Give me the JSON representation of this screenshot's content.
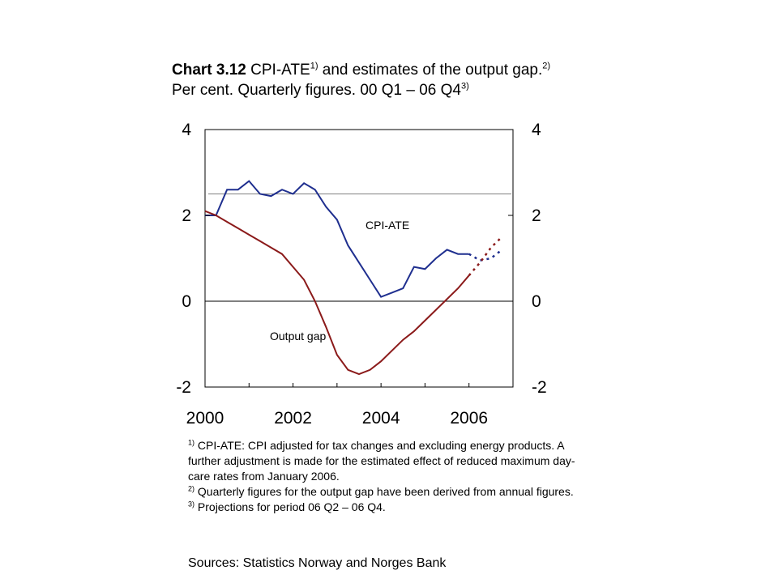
{
  "title": {
    "number": "Chart 3.12",
    "text1": " CPI-ATE",
    "sup1": "1)",
    "text2": " and estimates of the output gap.",
    "sup2": "2)",
    "text3": " Per cent. Quarterly figures. 00 Q1 – 06 Q4",
    "sup3": "3)"
  },
  "footnotes": [
    {
      "marker": "1)",
      "text": " CPI-ATE: CPI adjusted for tax changes and excluding energy products. A further adjustment is made for the estimated effect of reduced maximum day-care rates from January 2006."
    },
    {
      "marker": "2)",
      "text": " Quarterly figures for the output gap have been derived from annual figures."
    },
    {
      "marker": "3)",
      "text": " Projections for period 06 Q2 –  06 Q4."
    }
  ],
  "sources": "Sources: Statistics Norway and Norges Bank",
  "chart_data": {
    "type": "line",
    "xlim": [
      2000,
      2007
    ],
    "ylim": [
      -2,
      4
    ],
    "x_ticks": [
      2000,
      2002,
      2004,
      2006
    ],
    "x_tick_labels": [
      "2000",
      "2002",
      "2004",
      "2006"
    ],
    "y_ticks": [
      4,
      2,
      0,
      -2
    ],
    "y_tick_labels_left": [
      "4",
      "2",
      "0",
      "-2"
    ],
    "y_tick_labels_right": [
      "4",
      "2",
      "0",
      "-2"
    ],
    "grid": false,
    "reference_lines": [
      {
        "y": 2.5,
        "color": "#808080"
      },
      {
        "y": 0,
        "color": "#000000"
      }
    ],
    "x": [
      2000.0,
      2000.25,
      2000.5,
      2000.75,
      2001.0,
      2001.25,
      2001.5,
      2001.75,
      2002.0,
      2002.25,
      2002.5,
      2002.75,
      2003.0,
      2003.25,
      2003.5,
      2003.75,
      2004.0,
      2004.25,
      2004.5,
      2004.75,
      2005.0,
      2005.25,
      2005.5,
      2005.75,
      2006.0,
      2006.25,
      2006.5,
      2006.75
    ],
    "series": [
      {
        "name": "CPI-ATE",
        "color": "#1f2f8f",
        "projection_start_index": 25,
        "values": [
          2.0,
          2.0,
          2.6,
          2.6,
          2.8,
          2.5,
          2.45,
          2.6,
          2.5,
          2.75,
          2.6,
          2.2,
          1.9,
          1.3,
          0.9,
          0.5,
          0.1,
          0.2,
          0.3,
          0.8,
          0.75,
          1.0,
          1.2,
          1.1,
          1.1,
          0.95,
          1.0,
          1.2
        ]
      },
      {
        "name": "Output gap",
        "color": "#8b1a1a",
        "projection_start_index": 25,
        "values": [
          2.1,
          2.0,
          1.85,
          1.7,
          1.55,
          1.4,
          1.25,
          1.1,
          0.8,
          0.5,
          0.0,
          -0.6,
          -1.25,
          -1.6,
          -1.7,
          -1.6,
          -1.4,
          -1.15,
          -0.9,
          -0.7,
          -0.45,
          -0.2,
          0.05,
          0.3,
          0.6,
          0.9,
          1.25,
          1.5
        ]
      }
    ]
  }
}
